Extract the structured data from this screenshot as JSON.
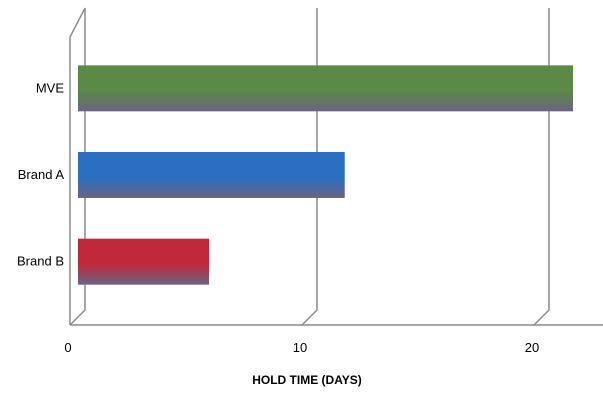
{
  "chart_data": {
    "type": "bar",
    "orientation": "horizontal",
    "style": "3d",
    "categories": [
      "MVE",
      "Brand A",
      "Brand B"
    ],
    "values": [
      21.9,
      11.8,
      5.8
    ],
    "bar_colors": [
      "#5a8a45",
      "#2a6fc0",
      "#c0283a"
    ],
    "xlabel": "HOLD TIME (DAYS)",
    "ylabel": "",
    "xlim": [
      0,
      23
    ],
    "xticks": [
      0,
      10,
      20
    ],
    "gridlines": true,
    "legend": "none"
  }
}
